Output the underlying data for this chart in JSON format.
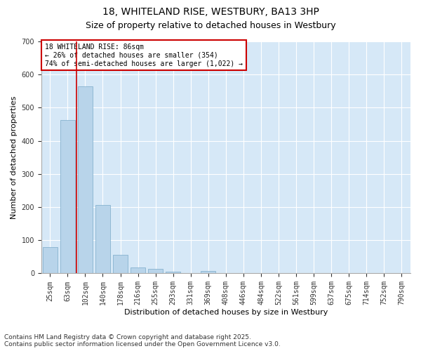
{
  "title": "18, WHITELAND RISE, WESTBURY, BA13 3HP",
  "subtitle": "Size of property relative to detached houses in Westbury",
  "xlabel": "Distribution of detached houses by size in Westbury",
  "ylabel": "Number of detached properties",
  "categories": [
    "25sqm",
    "63sqm",
    "102sqm",
    "140sqm",
    "178sqm",
    "216sqm",
    "255sqm",
    "293sqm",
    "331sqm",
    "369sqm",
    "408sqm",
    "446sqm",
    "484sqm",
    "522sqm",
    "561sqm",
    "599sqm",
    "637sqm",
    "675sqm",
    "714sqm",
    "752sqm",
    "790sqm"
  ],
  "values": [
    80,
    462,
    565,
    207,
    57,
    18,
    14,
    5,
    0,
    8,
    0,
    0,
    0,
    0,
    0,
    0,
    0,
    0,
    0,
    0,
    0
  ],
  "bar_color": "#b8d4ea",
  "bar_edge_color": "#7aaac8",
  "vline_color": "#cc0000",
  "vline_bin_index": 2,
  "annotation_text": "18 WHITELAND RISE: 86sqm\n← 26% of detached houses are smaller (354)\n74% of semi-detached houses are larger (1,022) →",
  "annotation_box_color": "#cc0000",
  "ylim": [
    0,
    700
  ],
  "yticks": [
    0,
    100,
    200,
    300,
    400,
    500,
    600,
    700
  ],
  "background_color": "#d6e8f7",
  "grid_color": "#ffffff",
  "footnote": "Contains HM Land Registry data © Crown copyright and database right 2025.\nContains public sector information licensed under the Open Government Licence v3.0.",
  "title_fontsize": 10,
  "subtitle_fontsize": 9,
  "xlabel_fontsize": 8,
  "ylabel_fontsize": 8,
  "tick_fontsize": 7,
  "annotation_fontsize": 7,
  "footnote_fontsize": 6.5
}
